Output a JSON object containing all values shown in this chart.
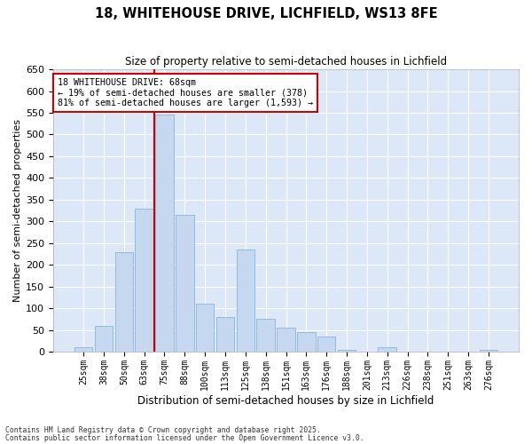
{
  "title1": "18, WHITEHOUSE DRIVE, LICHFIELD, WS13 8FE",
  "title2": "Size of property relative to semi-detached houses in Lichfield",
  "xlabel": "Distribution of semi-detached houses by size in Lichfield",
  "ylabel": "Number of semi-detached properties",
  "categories": [
    "25sqm",
    "38sqm",
    "50sqm",
    "63sqm",
    "75sqm",
    "88sqm",
    "100sqm",
    "113sqm",
    "125sqm",
    "138sqm",
    "151sqm",
    "163sqm",
    "176sqm",
    "188sqm",
    "201sqm",
    "213sqm",
    "226sqm",
    "238sqm",
    "251sqm",
    "263sqm",
    "276sqm"
  ],
  "values": [
    10,
    60,
    230,
    330,
    545,
    315,
    110,
    80,
    235,
    75,
    55,
    45,
    35,
    5,
    0,
    10,
    0,
    0,
    0,
    0,
    5
  ],
  "bar_color": "#c5d8f0",
  "bar_edge_color": "#8ab4d8",
  "vline_color": "#cc0000",
  "annotation_title": "18 WHITEHOUSE DRIVE: 68sqm",
  "annotation_line1": "← 19% of semi-detached houses are smaller (378)",
  "annotation_line2": "81% of semi-detached houses are larger (1,593) →",
  "annotation_box_edge": "#cc0000",
  "background_color": "#dce8f8",
  "grid_color": "#ffffff",
  "footer1": "Contains HM Land Registry data © Crown copyright and database right 2025.",
  "footer2": "Contains public sector information licensed under the Open Government Licence v3.0.",
  "ylim": [
    0,
    650
  ],
  "yticks": [
    0,
    50,
    100,
    150,
    200,
    250,
    300,
    350,
    400,
    450,
    500,
    550,
    600,
    650
  ],
  "vline_x_index": 3.5
}
